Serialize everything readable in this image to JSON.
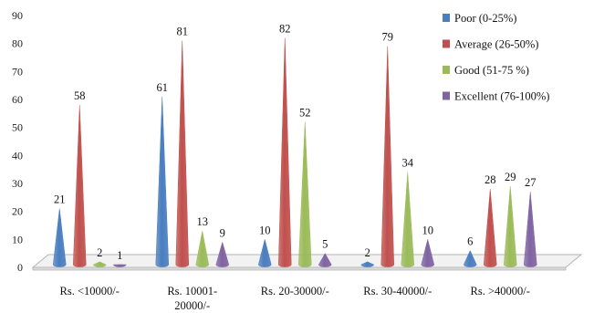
{
  "chart_data": {
    "type": "bar",
    "style": "3d-cone",
    "title": "",
    "xlabel": "",
    "ylabel": "",
    "ylim": [
      0,
      90
    ],
    "yticks": [
      0,
      10,
      20,
      30,
      40,
      50,
      60,
      70,
      80,
      90
    ],
    "grid": false,
    "legend_position": "top-right",
    "categories": [
      [
        "Rs. <10000/-"
      ],
      [
        "Rs. 10001-",
        "20000/-"
      ],
      [
        "Rs. 20-30000/-"
      ],
      [
        "Rs. 30-40000/-"
      ],
      [
        "Rs. >40000/-"
      ]
    ],
    "series": [
      {
        "name": "Poor  (0-25%)",
        "color": "#4a7ec0",
        "values": [
          21,
          61,
          10,
          2,
          6
        ]
      },
      {
        "name": "Average  (26-50%)",
        "color": "#c0504d",
        "values": [
          58,
          81,
          82,
          79,
          28
        ]
      },
      {
        "name": "Good  (51-75 %)",
        "color": "#9bbb59",
        "values": [
          2,
          13,
          52,
          34,
          29
        ]
      },
      {
        "name": "Excellent  (76-100%)",
        "color": "#8064a2",
        "values": [
          1,
          9,
          5,
          10,
          27
        ]
      }
    ]
  }
}
